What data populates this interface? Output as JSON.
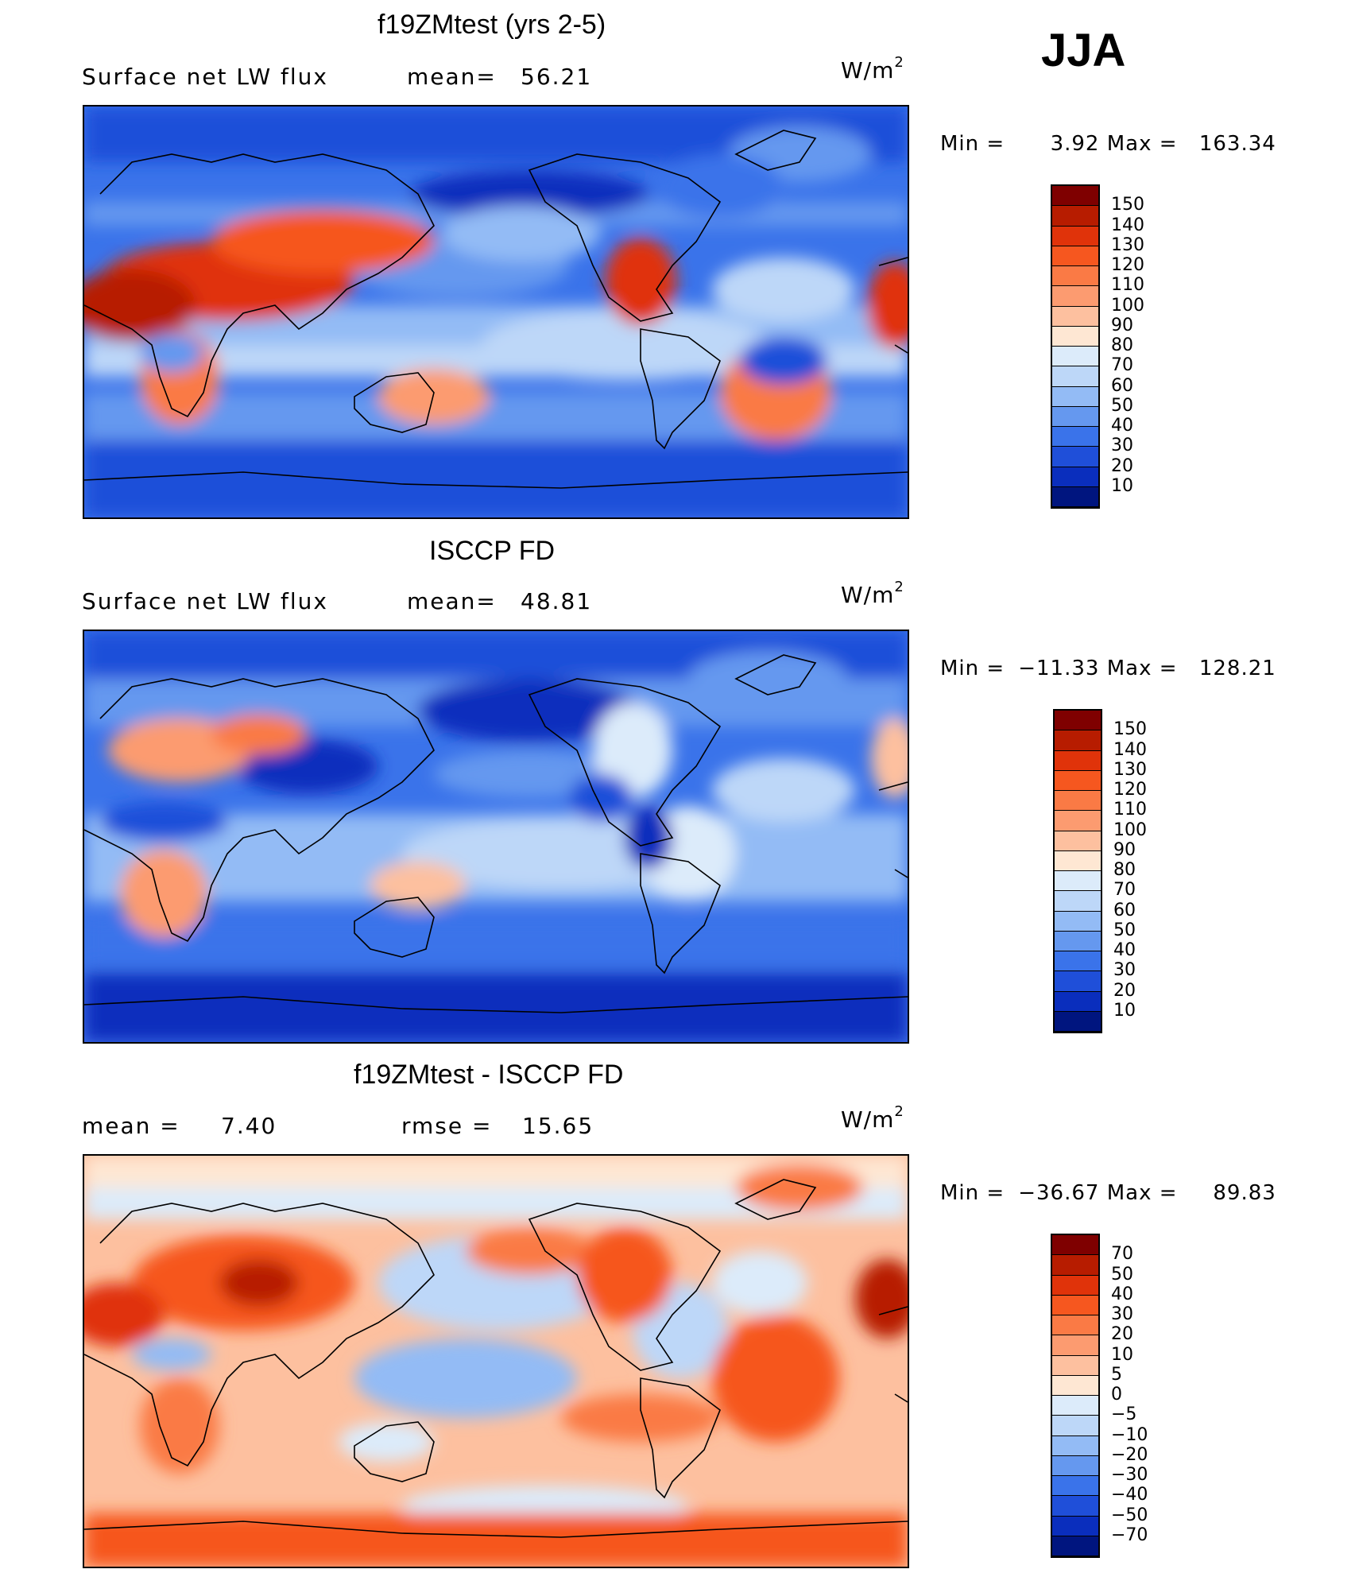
{
  "season": "JJA",
  "panels": [
    {
      "title": "f19ZMtest (yrs 2-5)",
      "variable": "Surface net LW flux",
      "stat1_label": "mean=",
      "stat1_value": "56.21",
      "stat2_label": "",
      "stat2_value": "",
      "units_base": "W/m",
      "units_exp": "2",
      "min_label": "Min  =",
      "min_value": "3.92",
      "max_label": "Max  =",
      "max_value": "163.34",
      "colorbar": {
        "labels": [
          "150",
          "140",
          "130",
          "120",
          "110",
          "100",
          "90",
          "80",
          "70",
          "60",
          "50",
          "40",
          "30",
          "20",
          "10"
        ],
        "colors": [
          "#7f0000",
          "#b71c00",
          "#e0330a",
          "#f6571f",
          "#fa7a45",
          "#fc9b70",
          "#fdc09f",
          "#fee7d3",
          "#dcebfa",
          "#bdd7f8",
          "#93bbf5",
          "#6598ef",
          "#3a73ea",
          "#1f4fd9",
          "#0a2ebd",
          "#00157f"
        ]
      }
    },
    {
      "title": "ISCCP FD",
      "variable": "Surface net LW flux",
      "stat1_label": "mean=",
      "stat1_value": "48.81",
      "stat2_label": "",
      "stat2_value": "",
      "units_base": "W/m",
      "units_exp": "2",
      "min_label": "Min  =",
      "min_value": "−11.33",
      "max_label": "Max  =",
      "max_value": "128.21",
      "colorbar": {
        "labels": [
          "150",
          "140",
          "130",
          "120",
          "110",
          "100",
          "90",
          "80",
          "70",
          "60",
          "50",
          "40",
          "30",
          "20",
          "10"
        ],
        "colors": [
          "#7f0000",
          "#b71c00",
          "#e0330a",
          "#f6571f",
          "#fa7a45",
          "#fc9b70",
          "#fdc09f",
          "#fee7d3",
          "#dcebfa",
          "#bdd7f8",
          "#93bbf5",
          "#6598ef",
          "#3a73ea",
          "#1f4fd9",
          "#0a2ebd",
          "#00157f"
        ]
      }
    },
    {
      "title": "f19ZMtest - ISCCP FD",
      "variable": "",
      "stat1_label": "mean  =",
      "stat1_value": "7.40",
      "stat2_label": "rmse  =",
      "stat2_value": "15.65",
      "units_base": "W/m",
      "units_exp": "2",
      "min_label": "Min  =",
      "min_value": "−36.67",
      "max_label": "Max  =",
      "max_value": "89.83",
      "colorbar": {
        "labels": [
          "70",
          "50",
          "40",
          "30",
          "20",
          "10",
          "5",
          "0",
          "−5",
          "−10",
          "−20",
          "−30",
          "−40",
          "−50",
          "−70"
        ],
        "colors": [
          "#7f0000",
          "#b71c00",
          "#e0330a",
          "#f6571f",
          "#fa7a45",
          "#fc9b70",
          "#fdc09f",
          "#fee7d3",
          "#dcebfa",
          "#bdd7f8",
          "#93bbf5",
          "#6598ef",
          "#3a73ea",
          "#1f4fd9",
          "#0a2ebd",
          "#00157f"
        ]
      }
    }
  ]
}
